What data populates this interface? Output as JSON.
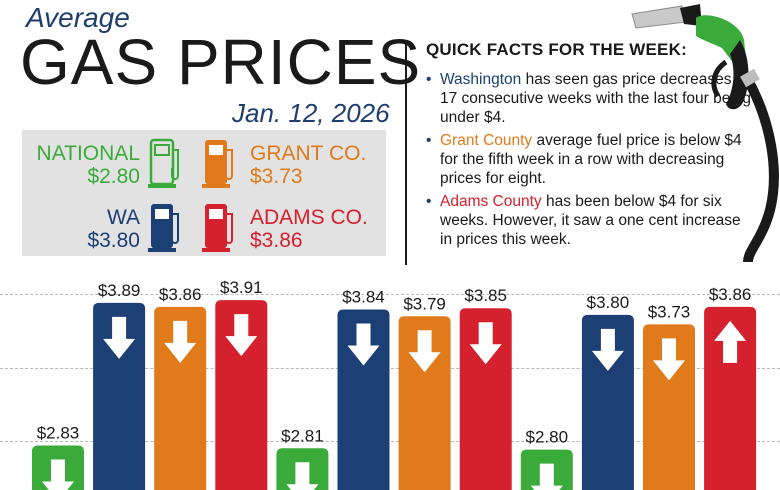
{
  "header": {
    "average": "Average",
    "title": "GAS PRICES",
    "date": "Jan. 12, 2026"
  },
  "prices": {
    "national": {
      "label": "NATIONAL",
      "value": "$2.80",
      "color": "#3aab3a"
    },
    "grant": {
      "label": "GRANT CO.",
      "value": "$3.73",
      "color": "#e07a1a"
    },
    "wa": {
      "label": "WA",
      "value": "$3.80",
      "color": "#1c3f75"
    },
    "adams": {
      "label": "ADAMS CO.",
      "value": "$3.86",
      "color": "#d5202d"
    }
  },
  "facts": {
    "heading": "QUICK FACTS FOR THE WEEK:",
    "items": [
      {
        "highlight": "Washington",
        "text": " has seen gas price decreases for 17 consecutive weeks with the last four being under $4.",
        "color": "#1c3f75"
      },
      {
        "highlight": "Grant County",
        "text": " average fuel price is below $4 for the fifth week in a row with decreasing prices for eight.",
        "color": "#e07a1a"
      },
      {
        "highlight": "Adams County",
        "text": " has been below $4 for six weeks. However, it saw a one cent increase in prices this week.",
        "color": "#d5202d"
      }
    ]
  },
  "chart_data": {
    "type": "bar",
    "ylim": [
      2.5,
      4.0
    ],
    "colors": {
      "national": "#3aab3a",
      "wa": "#1c3f75",
      "grant": "#e07a1a",
      "adams": "#d5202d"
    },
    "bars": [
      {
        "label": "$2.83",
        "value": 2.83,
        "series": "national",
        "direction": "down"
      },
      {
        "label": "$3.89",
        "value": 3.89,
        "series": "wa",
        "direction": "down"
      },
      {
        "label": "$3.86",
        "value": 3.86,
        "series": "grant",
        "direction": "down"
      },
      {
        "label": "$3.91",
        "value": 3.91,
        "series": "adams",
        "direction": "down"
      },
      {
        "label": "$2.81",
        "value": 2.81,
        "series": "national",
        "direction": "down"
      },
      {
        "label": "$3.84",
        "value": 3.84,
        "series": "wa",
        "direction": "down"
      },
      {
        "label": "$3.79",
        "value": 3.79,
        "series": "grant",
        "direction": "down"
      },
      {
        "label": "$3.85",
        "value": 3.85,
        "series": "adams",
        "direction": "down"
      },
      {
        "label": "$2.80",
        "value": 2.8,
        "series": "national",
        "direction": "down"
      },
      {
        "label": "$3.80",
        "value": 3.8,
        "series": "wa",
        "direction": "down"
      },
      {
        "label": "$3.73",
        "value": 3.73,
        "series": "grant",
        "direction": "down"
      },
      {
        "label": "$3.86",
        "value": 3.86,
        "series": "adams",
        "direction": "up"
      }
    ]
  }
}
